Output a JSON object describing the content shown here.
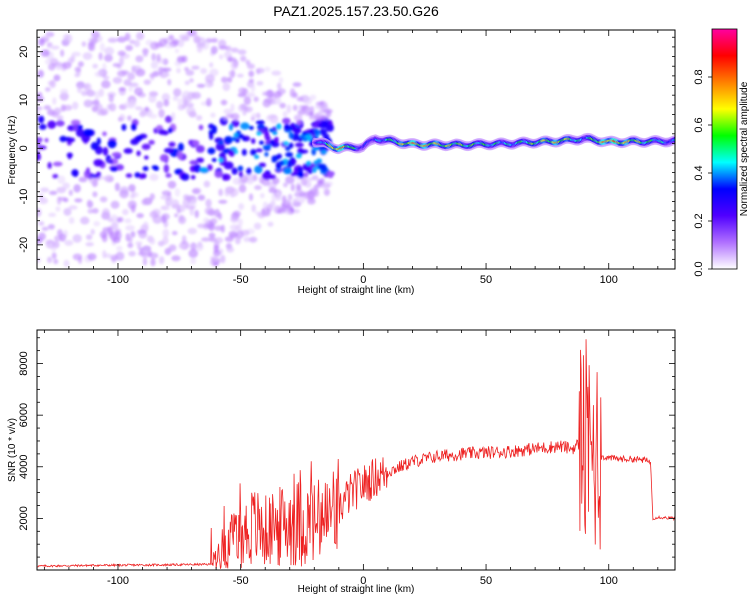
{
  "figure": {
    "title": "PAZ1.2025.157.23.50.G26"
  },
  "chart_data": [
    {
      "type": "heatmap",
      "name": "spectrogram",
      "title": "PAZ1.2025.157.23.50.G26",
      "xlabel": "Height of straight line (km)",
      "ylabel": "Frequency (Hz)",
      "xlim": [
        -133,
        127
      ],
      "ylim": [
        -25,
        24.5
      ],
      "x_ticks": [
        -100,
        -50,
        0,
        50,
        100
      ],
      "y_ticks": [
        -20,
        -10,
        0,
        10,
        20
      ],
      "colorbar": {
        "label": "Normalized spectral amplitude",
        "ticks": [
          0.0,
          0.2,
          0.4,
          0.6,
          0.8
        ],
        "tick_labels": [
          "0.0",
          "0.2",
          "0.4",
          "0.6",
          "0.8"
        ],
        "range": [
          0,
          1
        ],
        "colormap": [
          "#ffffff",
          "#b070ff",
          "#5000ff",
          "#0000ff",
          "#00ffff",
          "#00ff00",
          "#ffff00",
          "#ff8000",
          "#ff0000",
          "#ff00a0"
        ]
      },
      "ridge": [
        {
          "x": -20,
          "y": 1.5,
          "amp": 0.25
        },
        {
          "x": -10,
          "y": 0.0,
          "amp": 0.95
        },
        {
          "x": 0,
          "y": 0.3,
          "amp": 0.35
        },
        {
          "x": 5,
          "y": 2.0,
          "amp": 0.4
        },
        {
          "x": 20,
          "y": 0.8,
          "amp": 0.85
        },
        {
          "x": 40,
          "y": 0.7,
          "amp": 0.65
        },
        {
          "x": 60,
          "y": 1.0,
          "amp": 0.5
        },
        {
          "x": 80,
          "y": 1.5,
          "amp": 0.8
        },
        {
          "x": 90,
          "y": 2.0,
          "amp": 0.45
        },
        {
          "x": 100,
          "y": 1.3,
          "amp": 0.92
        },
        {
          "x": 127,
          "y": 1.5,
          "amp": 0.4
        }
      ],
      "grid": false
    },
    {
      "type": "line",
      "name": "snr",
      "xlabel": "Height of straight line (km)",
      "ylabel": "SNR (10 * v/v)",
      "xlim": [
        -133,
        127
      ],
      "ylim": [
        0,
        9300
      ],
      "x_ticks": [
        -100,
        -50,
        0,
        50,
        100
      ],
      "y_ticks": [
        2000,
        4000,
        6000,
        8000
      ],
      "line_color": "#ee2222",
      "series": [
        {
          "x": [
            -133,
            -110,
            -80,
            -62,
            -58,
            -55,
            -50,
            -45,
            -40,
            -35,
            -30,
            -25,
            -20,
            -15,
            -10,
            -5,
            0,
            5,
            10,
            15,
            20,
            25,
            30,
            40,
            50,
            60,
            70,
            80,
            85,
            88,
            90,
            92,
            94,
            95,
            96,
            100,
            105,
            110,
            115,
            117,
            118,
            120,
            127
          ],
          "values": [
            150,
            180,
            200,
            220,
            800,
            1000,
            1300,
            1700,
            1500,
            1600,
            1900,
            1800,
            1800,
            1900,
            2400,
            3000,
            3300,
            3600,
            3800,
            4000,
            4200,
            4300,
            4400,
            4500,
            4550,
            4600,
            4700,
            4800,
            4700,
            4900,
            4800,
            4600,
            4500,
            4600,
            4400,
            4350,
            4300,
            4300,
            4250,
            4200,
            2000,
            2050,
            2000
          ]
        }
      ],
      "grid": false
    }
  ]
}
